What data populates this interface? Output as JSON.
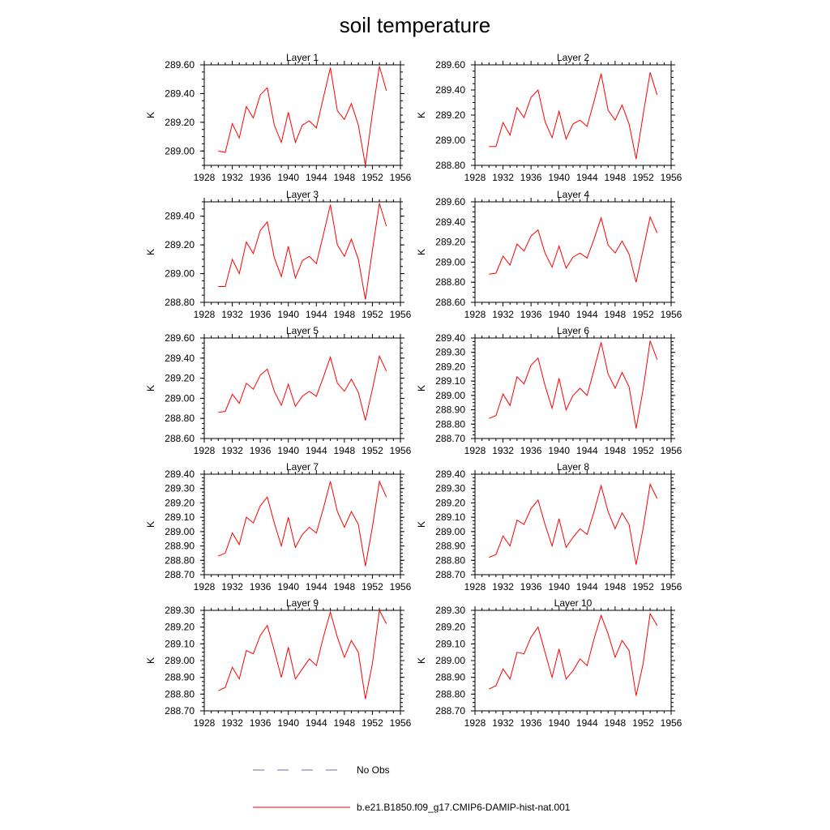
{
  "title": "soil temperature",
  "colors": {
    "model": "#ff0000",
    "obs": "#6a6ab8",
    "axis": "#000000"
  },
  "legend": {
    "obs_label": "No Obs",
    "model_label": "b.e21.B1850.f09_g17.CMIP6-DAMIP-hist-nat.001"
  },
  "chart_data": [
    {
      "type": "line",
      "title": "Layer 1",
      "ylabel": "K",
      "xlim": [
        1928,
        1956
      ],
      "xticks": [
        1928,
        1932,
        1936,
        1940,
        1944,
        1948,
        1952,
        1956
      ],
      "ylim": [
        288.9,
        289.6
      ],
      "yticks": [
        289.0,
        289.2,
        289.4,
        289.6
      ],
      "yticklabels": [
        "289.00",
        "289.20",
        "289.40",
        "289.60"
      ],
      "x": [
        1930,
        1931,
        1932,
        1933,
        1934,
        1935,
        1936,
        1937,
        1938,
        1939,
        1940,
        1941,
        1942,
        1943,
        1944,
        1945,
        1946,
        1947,
        1948,
        1949,
        1950,
        1951,
        1952,
        1953,
        1954
      ],
      "series": [
        {
          "name": "b.e21.B1850.f09_g17.CMIP6-DAMIP-hist-nat.001",
          "values": [
            289.0,
            288.99,
            289.19,
            289.09,
            289.31,
            289.23,
            289.39,
            289.44,
            289.18,
            289.06,
            289.27,
            289.06,
            289.18,
            289.21,
            289.16,
            289.37,
            289.58,
            289.28,
            289.22,
            289.33,
            289.18,
            288.9,
            289.26,
            289.59,
            289.42
          ]
        }
      ]
    },
    {
      "type": "line",
      "title": "Layer 2",
      "ylabel": "K",
      "xlim": [
        1928,
        1956
      ],
      "xticks": [
        1928,
        1932,
        1936,
        1940,
        1944,
        1948,
        1952,
        1956
      ],
      "ylim": [
        288.8,
        289.6
      ],
      "yticks": [
        288.8,
        289.0,
        289.2,
        289.4,
        289.6
      ],
      "yticklabels": [
        "288.80",
        "289.00",
        "289.20",
        "289.40",
        "289.60"
      ],
      "x": [
        1930,
        1931,
        1932,
        1933,
        1934,
        1935,
        1936,
        1937,
        1938,
        1939,
        1940,
        1941,
        1942,
        1943,
        1944,
        1945,
        1946,
        1947,
        1948,
        1949,
        1950,
        1951,
        1952,
        1953,
        1954
      ],
      "series": [
        {
          "name": "b.e21.B1850.f09_g17.CMIP6-DAMIP-hist-nat.001",
          "values": [
            288.95,
            288.95,
            289.14,
            289.04,
            289.26,
            289.18,
            289.34,
            289.4,
            289.15,
            289.02,
            289.23,
            289.01,
            289.13,
            289.16,
            289.11,
            289.31,
            289.53,
            289.24,
            289.16,
            289.28,
            289.13,
            288.85,
            289.2,
            289.54,
            289.36
          ]
        }
      ]
    },
    {
      "type": "line",
      "title": "Layer 3",
      "ylabel": "K",
      "xlim": [
        1928,
        1956
      ],
      "xticks": [
        1928,
        1932,
        1936,
        1940,
        1944,
        1948,
        1952,
        1956
      ],
      "ylim": [
        288.8,
        289.5
      ],
      "yticks": [
        288.8,
        289.0,
        289.2,
        289.4
      ],
      "yticklabels": [
        "288.80",
        "289.00",
        "289.20",
        "289.40"
      ],
      "x": [
        1930,
        1931,
        1932,
        1933,
        1934,
        1935,
        1936,
        1937,
        1938,
        1939,
        1940,
        1941,
        1942,
        1943,
        1944,
        1945,
        1946,
        1947,
        1948,
        1949,
        1950,
        1951,
        1952,
        1953,
        1954
      ],
      "series": [
        {
          "name": "b.e21.B1850.f09_g17.CMIP6-DAMIP-hist-nat.001",
          "values": [
            288.91,
            288.91,
            289.1,
            289.0,
            289.22,
            289.14,
            289.3,
            289.36,
            289.11,
            288.98,
            289.19,
            288.97,
            289.09,
            289.12,
            289.07,
            289.27,
            289.48,
            289.2,
            289.12,
            289.24,
            289.1,
            288.82,
            289.16,
            289.49,
            289.33
          ]
        }
      ]
    },
    {
      "type": "line",
      "title": "Layer 4",
      "ylabel": "K",
      "xlim": [
        1928,
        1956
      ],
      "xticks": [
        1928,
        1932,
        1936,
        1940,
        1944,
        1948,
        1952,
        1956
      ],
      "ylim": [
        288.6,
        289.6
      ],
      "yticks": [
        288.6,
        288.8,
        289.0,
        289.2,
        289.4,
        289.6
      ],
      "yticklabels": [
        "288.60",
        "288.80",
        "289.00",
        "289.20",
        "289.40",
        "289.60"
      ],
      "x": [
        1930,
        1931,
        1932,
        1933,
        1934,
        1935,
        1936,
        1937,
        1938,
        1939,
        1940,
        1941,
        1942,
        1943,
        1944,
        1945,
        1946,
        1947,
        1948,
        1949,
        1950,
        1951,
        1952,
        1953,
        1954
      ],
      "series": [
        {
          "name": "b.e21.B1850.f09_g17.CMIP6-DAMIP-hist-nat.001",
          "values": [
            288.88,
            288.89,
            289.06,
            288.97,
            289.18,
            289.11,
            289.26,
            289.32,
            289.09,
            288.95,
            289.16,
            288.94,
            289.05,
            289.09,
            289.04,
            289.23,
            289.44,
            289.17,
            289.09,
            289.21,
            289.08,
            288.8,
            289.12,
            289.45,
            289.29
          ]
        }
      ]
    },
    {
      "type": "line",
      "title": "Layer 5",
      "ylabel": "K",
      "xlim": [
        1928,
        1956
      ],
      "xticks": [
        1928,
        1932,
        1936,
        1940,
        1944,
        1948,
        1952,
        1956
      ],
      "ylim": [
        288.6,
        289.6
      ],
      "yticks": [
        288.6,
        288.8,
        289.0,
        289.2,
        289.4,
        289.6
      ],
      "yticklabels": [
        "288.60",
        "288.80",
        "289.00",
        "289.20",
        "289.40",
        "289.60"
      ],
      "x": [
        1930,
        1931,
        1932,
        1933,
        1934,
        1935,
        1936,
        1937,
        1938,
        1939,
        1940,
        1941,
        1942,
        1943,
        1944,
        1945,
        1946,
        1947,
        1948,
        1949,
        1950,
        1951,
        1952,
        1953,
        1954
      ],
      "series": [
        {
          "name": "b.e21.B1850.f09_g17.CMIP6-DAMIP-hist-nat.001",
          "values": [
            288.86,
            288.87,
            289.04,
            288.95,
            289.15,
            289.09,
            289.23,
            289.29,
            289.07,
            288.93,
            289.14,
            288.92,
            289.02,
            289.07,
            289.02,
            289.21,
            289.41,
            289.15,
            289.07,
            289.19,
            289.06,
            288.78,
            289.09,
            289.42,
            289.27
          ]
        }
      ]
    },
    {
      "type": "line",
      "title": "Layer 6",
      "ylabel": "K",
      "xlim": [
        1928,
        1956
      ],
      "xticks": [
        1928,
        1932,
        1936,
        1940,
        1944,
        1948,
        1952,
        1956
      ],
      "ylim": [
        288.7,
        289.4
      ],
      "yticks": [
        288.7,
        288.8,
        288.9,
        289.0,
        289.1,
        289.2,
        289.3,
        289.4
      ],
      "yticklabels": [
        "288.70",
        "288.80",
        "288.90",
        "289.00",
        "289.10",
        "289.20",
        "289.30",
        "289.40"
      ],
      "x": [
        1930,
        1931,
        1932,
        1933,
        1934,
        1935,
        1936,
        1937,
        1938,
        1939,
        1940,
        1941,
        1942,
        1943,
        1944,
        1945,
        1946,
        1947,
        1948,
        1949,
        1950,
        1951,
        1952,
        1953,
        1954
      ],
      "series": [
        {
          "name": "b.e21.B1850.f09_g17.CMIP6-DAMIP-hist-nat.001",
          "values": [
            288.84,
            288.86,
            289.01,
            288.93,
            289.13,
            289.08,
            289.21,
            289.26,
            289.07,
            288.91,
            289.12,
            288.9,
            289.0,
            289.05,
            289.0,
            289.18,
            289.37,
            289.15,
            289.05,
            289.16,
            289.06,
            288.77,
            289.04,
            289.38,
            289.25
          ]
        }
      ]
    },
    {
      "type": "line",
      "title": "Layer 7",
      "ylabel": "K",
      "xlim": [
        1928,
        1956
      ],
      "xticks": [
        1928,
        1932,
        1936,
        1940,
        1944,
        1948,
        1952,
        1956
      ],
      "ylim": [
        288.7,
        289.4
      ],
      "yticks": [
        288.7,
        288.8,
        288.9,
        289.0,
        289.1,
        289.2,
        289.3,
        289.4
      ],
      "yticklabels": [
        "288.70",
        "288.80",
        "288.90",
        "289.00",
        "289.10",
        "289.20",
        "289.30",
        "289.40"
      ],
      "x": [
        1930,
        1931,
        1932,
        1933,
        1934,
        1935,
        1936,
        1937,
        1938,
        1939,
        1940,
        1941,
        1942,
        1943,
        1944,
        1945,
        1946,
        1947,
        1948,
        1949,
        1950,
        1951,
        1952,
        1953,
        1954
      ],
      "series": [
        {
          "name": "b.e21.B1850.f09_g17.CMIP6-DAMIP-hist-nat.001",
          "values": [
            288.83,
            288.85,
            288.99,
            288.91,
            289.1,
            289.06,
            289.18,
            289.24,
            289.06,
            288.9,
            289.1,
            288.89,
            288.98,
            289.03,
            288.99,
            289.16,
            289.35,
            289.14,
            289.03,
            289.14,
            289.05,
            288.76,
            289.03,
            289.35,
            289.24
          ]
        }
      ]
    },
    {
      "type": "line",
      "title": "Layer 8",
      "ylabel": "K",
      "xlim": [
        1928,
        1956
      ],
      "xticks": [
        1928,
        1932,
        1936,
        1940,
        1944,
        1948,
        1952,
        1956
      ],
      "ylim": [
        288.7,
        289.4
      ],
      "yticks": [
        288.7,
        288.8,
        288.9,
        289.0,
        289.1,
        289.2,
        289.3,
        289.4
      ],
      "yticklabels": [
        "288.70",
        "288.80",
        "288.90",
        "289.00",
        "289.10",
        "289.20",
        "289.30",
        "289.40"
      ],
      "x": [
        1930,
        1931,
        1932,
        1933,
        1934,
        1935,
        1936,
        1937,
        1938,
        1939,
        1940,
        1941,
        1942,
        1943,
        1944,
        1945,
        1946,
        1947,
        1948,
        1949,
        1950,
        1951,
        1952,
        1953,
        1954
      ],
      "series": [
        {
          "name": "b.e21.B1850.f09_g17.CMIP6-DAMIP-hist-nat.001",
          "values": [
            288.82,
            288.84,
            288.97,
            288.9,
            289.08,
            289.05,
            289.16,
            289.22,
            289.05,
            288.9,
            289.09,
            288.89,
            288.96,
            289.02,
            288.98,
            289.14,
            289.32,
            289.14,
            289.02,
            289.13,
            289.05,
            288.77,
            289.02,
            289.33,
            289.23
          ]
        }
      ]
    },
    {
      "type": "line",
      "title": "Layer 9",
      "ylabel": "K",
      "xlim": [
        1928,
        1956
      ],
      "xticks": [
        1928,
        1932,
        1936,
        1940,
        1944,
        1948,
        1952,
        1956
      ],
      "ylim": [
        288.7,
        289.3
      ],
      "yticks": [
        288.7,
        288.8,
        288.9,
        289.0,
        289.1,
        289.2,
        289.3
      ],
      "yticklabels": [
        "288.70",
        "288.80",
        "288.90",
        "289.00",
        "289.10",
        "289.20",
        "289.30"
      ],
      "x": [
        1930,
        1931,
        1932,
        1933,
        1934,
        1935,
        1936,
        1937,
        1938,
        1939,
        1940,
        1941,
        1942,
        1943,
        1944,
        1945,
        1946,
        1947,
        1948,
        1949,
        1950,
        1951,
        1952,
        1953,
        1954
      ],
      "series": [
        {
          "name": "b.e21.B1850.f09_g17.CMIP6-DAMIP-hist-nat.001",
          "values": [
            288.82,
            288.84,
            288.96,
            288.89,
            289.06,
            289.04,
            289.15,
            289.21,
            289.06,
            288.9,
            289.08,
            288.89,
            288.95,
            289.01,
            288.97,
            289.14,
            289.29,
            289.14,
            289.02,
            289.12,
            289.05,
            288.77,
            288.98,
            289.3,
            289.22
          ]
        }
      ]
    },
    {
      "type": "line",
      "title": "Layer 10",
      "ylabel": "K",
      "xlim": [
        1928,
        1956
      ],
      "xticks": [
        1928,
        1932,
        1936,
        1940,
        1944,
        1948,
        1952,
        1956
      ],
      "ylim": [
        288.7,
        289.3
      ],
      "yticks": [
        288.7,
        288.8,
        288.9,
        289.0,
        289.1,
        289.2,
        289.3
      ],
      "yticklabels": [
        "288.70",
        "288.80",
        "288.90",
        "289.00",
        "289.10",
        "289.20",
        "289.30"
      ],
      "x": [
        1930,
        1931,
        1932,
        1933,
        1934,
        1935,
        1936,
        1937,
        1938,
        1939,
        1940,
        1941,
        1942,
        1943,
        1944,
        1945,
        1946,
        1947,
        1948,
        1949,
        1950,
        1951,
        1952,
        1953,
        1954
      ],
      "series": [
        {
          "name": "b.e21.B1850.f09_g17.CMIP6-DAMIP-hist-nat.001",
          "values": [
            288.83,
            288.85,
            288.95,
            288.89,
            289.05,
            289.04,
            289.14,
            289.2,
            289.05,
            288.9,
            289.07,
            288.89,
            288.94,
            289.01,
            288.97,
            289.13,
            289.27,
            289.16,
            289.02,
            289.12,
            289.06,
            288.79,
            288.98,
            289.28,
            289.21
          ]
        }
      ]
    }
  ]
}
